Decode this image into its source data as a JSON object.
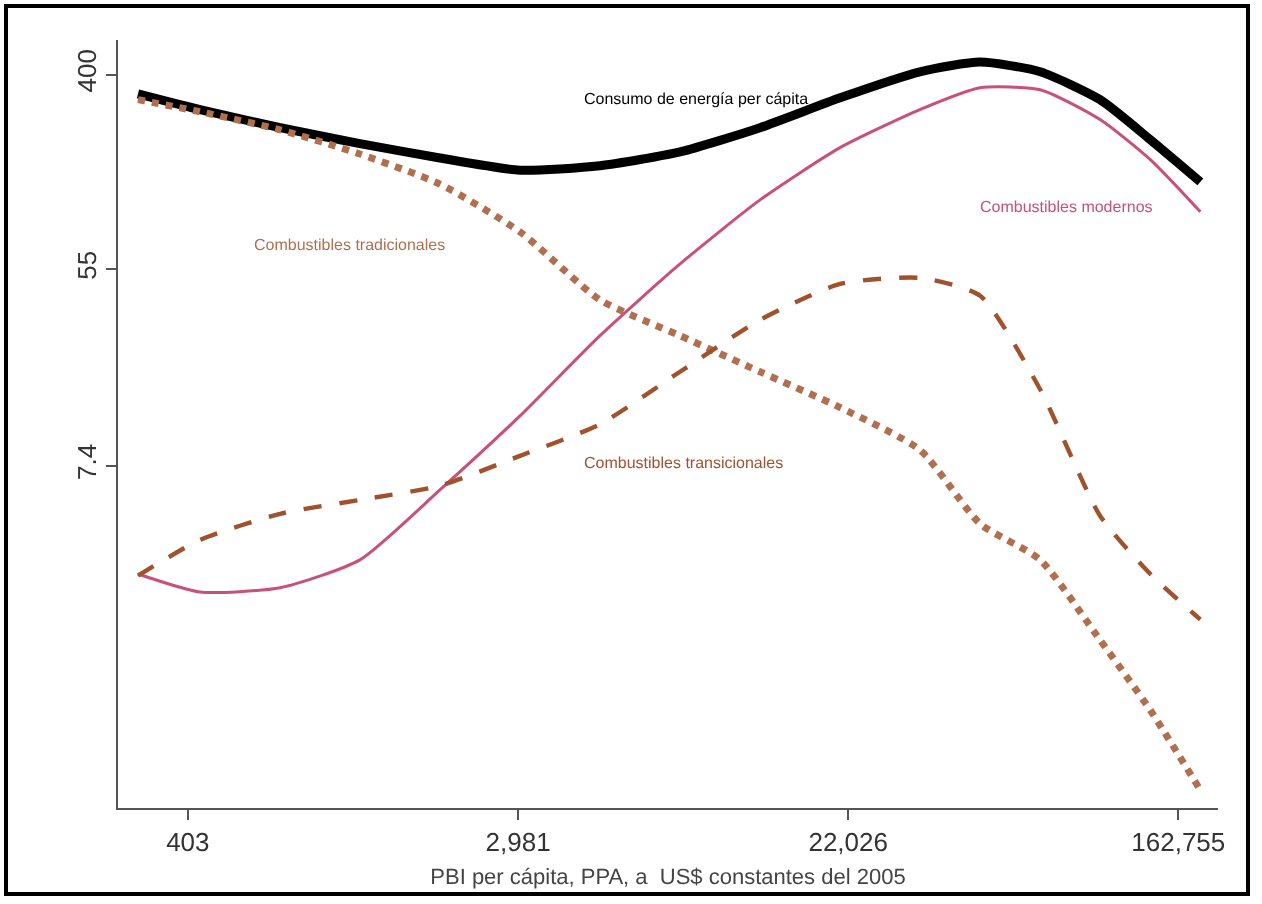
{
  "chart_data": {
    "type": "line",
    "xlabel": "PBI per cápita, PPA, a  US$ constantes del 2005",
    "log": "xy",
    "grid": false,
    "legend": false,
    "marker": "none",
    "x": [
      298,
      434,
      705,
      1143,
      1856,
      3015,
      4895,
      7950,
      12910,
      20970,
      34000,
      49000,
      70500,
      101300,
      137400,
      186000
    ],
    "xlim": [
      264,
      207000
    ],
    "xticks": [
      {
        "value": 403,
        "label": "403"
      },
      {
        "value": 2981,
        "label": "2,981"
      },
      {
        "value": 22026,
        "label": "22,026"
      },
      {
        "value": 162755,
        "label": "162,755"
      }
    ],
    "ylim": [
      0.225,
      570
    ],
    "yticks": [
      400,
      55,
      7.4
    ],
    "series": [
      {
        "name": "Consumo de energía per cápita",
        "color": "#000000",
        "line_style": "solid",
        "values": [
          329,
          280,
          233,
          198,
          171,
          151,
          158,
          182,
          233,
          316,
          412,
          455,
          412,
          310,
          206,
          134
        ]
      },
      {
        "name": "Combustibles modernos",
        "color": "#c8507a",
        "line_style": "solid",
        "values": [
          2.45,
          2.04,
          2.13,
          2.83,
          5.78,
          12.3,
          27.9,
          58,
          111.5,
          190,
          280,
          350,
          343,
          253,
          168,
          98.7
        ]
      },
      {
        "name": "Combustibles tradicionales",
        "color": "#b07050",
        "line_style": "dotted",
        "values": [
          310,
          274,
          228,
          178,
          131,
          80.5,
          40.2,
          27.9,
          19.3,
          13.4,
          8.7,
          4.09,
          2.83,
          1.25,
          0.61,
          0.27
        ]
      },
      {
        "name": "Combustibles transicionales",
        "color": "#a0522d",
        "line_style": "dashed",
        "values": [
          2.41,
          3.47,
          4.53,
          5.22,
          6.03,
          8.18,
          11.3,
          19.3,
          32.8,
          47.3,
          50.3,
          41.9,
          16.1,
          4.44,
          2.45,
          1.54
        ]
      }
    ]
  }
}
